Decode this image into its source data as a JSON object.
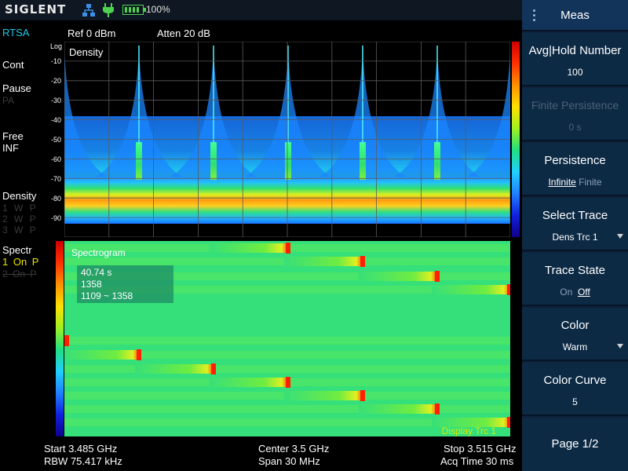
{
  "brand": "SIGLENT",
  "battery": "100%",
  "left": {
    "mode": "RTSA",
    "cont": "Cont",
    "pause": "Pause",
    "pa": "PA",
    "free": "Free",
    "inf": "INF",
    "density": "Density",
    "dens_rows": [
      "1 W P",
      "2 W P",
      "3 W P"
    ],
    "spectr": "Spectr",
    "spec_rows": [
      "1 On P",
      "2 On P"
    ]
  },
  "header": {
    "ref": "Ref  0 dBm",
    "atten": "Atten  20 dB"
  },
  "density": {
    "title": "Density",
    "ylog": "Log",
    "yticks": [
      "-10",
      "-20",
      "-30",
      "-40",
      "-50",
      "-60",
      "-70",
      "-80",
      "-90"
    ]
  },
  "spectrogram": {
    "title": "Spectrogram",
    "info": [
      "40.74 s",
      "1358",
      "1109 ~ 1358"
    ],
    "footer": "Display Trc 1"
  },
  "bottom": {
    "start": "Start  3.485 GHz",
    "rbw": "RBW  75.417 kHz",
    "center": "Center  3.5 GHz",
    "span": "Span  30 MHz",
    "stop": "Stop  3.515 GHz",
    "acq": "Acq Time  30 ms"
  },
  "menu": {
    "title": "Meas",
    "avg_hold": {
      "label": "Avg|Hold Number",
      "value": "100"
    },
    "finite_persistence": {
      "label": "Finite Persistence",
      "value": "0 s"
    },
    "persistence": {
      "label": "Persistence",
      "opt1": "Infinite",
      "opt2": "Finite"
    },
    "select_trace": {
      "label": "Select Trace",
      "value": "Dens Trc 1"
    },
    "trace_state": {
      "label": "Trace State",
      "opt1": "On",
      "opt2": "Off"
    },
    "color": {
      "label": "Color",
      "value": "Warm"
    },
    "color_curve": {
      "label": "Color Curve",
      "value": "5"
    },
    "page": "Page 1/2"
  },
  "colors": {
    "menu_bg": "#0d2a45",
    "accent_cyan": "#1ec8e6",
    "spectrogram_bg": "#35e07a"
  }
}
